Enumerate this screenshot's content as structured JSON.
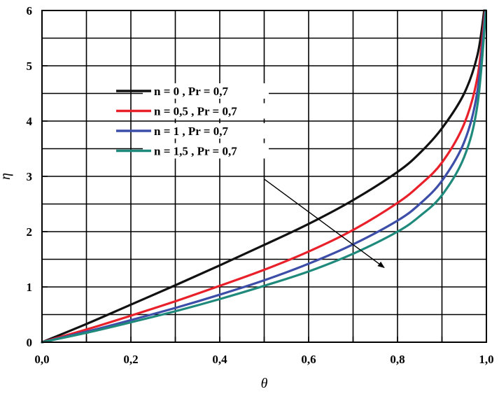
{
  "chart_data": {
    "type": "line",
    "title": "",
    "xlabel": "θ",
    "ylabel": "η",
    "xlim": [
      0,
      1
    ],
    "ylim": [
      0,
      6
    ],
    "grid": true,
    "x_ticks": [
      0,
      0.1,
      0.2,
      0.3,
      0.4,
      0.5,
      0.6,
      0.7,
      0.8,
      0.9,
      1.0
    ],
    "x_tick_labels": [
      "0,0",
      "",
      "0,2",
      "",
      "0,4",
      "",
      "0,6",
      "",
      "0,8",
      "",
      "1,0"
    ],
    "y_ticks": [
      0,
      1,
      2,
      3,
      4,
      5,
      6
    ],
    "y_tick_labels": [
      "0",
      "1",
      "2",
      "3",
      "4",
      "5",
      "6"
    ],
    "legend_position": "upper-left",
    "series": [
      {
        "name": "n = 0 , Pr = 0,7",
        "color": "#111111",
        "points": [
          [
            0,
            0
          ],
          [
            0.1,
            0.33
          ],
          [
            0.2,
            0.68
          ],
          [
            0.3,
            1.03
          ],
          [
            0.4,
            1.39
          ],
          [
            0.5,
            1.76
          ],
          [
            0.6,
            2.14
          ],
          [
            0.7,
            2.57
          ],
          [
            0.8,
            3.08
          ],
          [
            0.85,
            3.42
          ],
          [
            0.9,
            3.87
          ],
          [
            0.95,
            4.5
          ],
          [
            0.98,
            5.2
          ],
          [
            0.995,
            6.0
          ]
        ]
      },
      {
        "name": "n = 0,5 , Pr = 0,7",
        "color": "#e8202a",
        "points": [
          [
            0,
            0
          ],
          [
            0.1,
            0.23
          ],
          [
            0.2,
            0.48
          ],
          [
            0.3,
            0.74
          ],
          [
            0.4,
            1.02
          ],
          [
            0.5,
            1.31
          ],
          [
            0.6,
            1.64
          ],
          [
            0.7,
            2.03
          ],
          [
            0.8,
            2.52
          ],
          [
            0.85,
            2.84
          ],
          [
            0.9,
            3.25
          ],
          [
            0.95,
            3.95
          ],
          [
            0.98,
            4.8
          ],
          [
            0.997,
            6.0
          ]
        ]
      },
      {
        "name": "n = 1 , Pr = 0,7",
        "color": "#3d4ea8",
        "points": [
          [
            0,
            0
          ],
          [
            0.1,
            0.19
          ],
          [
            0.2,
            0.4
          ],
          [
            0.3,
            0.62
          ],
          [
            0.4,
            0.86
          ],
          [
            0.5,
            1.12
          ],
          [
            0.6,
            1.42
          ],
          [
            0.7,
            1.77
          ],
          [
            0.8,
            2.2
          ],
          [
            0.85,
            2.5
          ],
          [
            0.9,
            2.92
          ],
          [
            0.95,
            3.62
          ],
          [
            0.98,
            4.55
          ],
          [
            0.998,
            6.0
          ]
        ]
      },
      {
        "name": "n = 1,5 , Pr = 0,7",
        "color": "#1f8a7c",
        "points": [
          [
            0,
            0
          ],
          [
            0.1,
            0.17
          ],
          [
            0.2,
            0.36
          ],
          [
            0.3,
            0.56
          ],
          [
            0.4,
            0.78
          ],
          [
            0.5,
            1.02
          ],
          [
            0.6,
            1.28
          ],
          [
            0.7,
            1.6
          ],
          [
            0.8,
            2.0
          ],
          [
            0.85,
            2.28
          ],
          [
            0.9,
            2.66
          ],
          [
            0.95,
            3.35
          ],
          [
            0.98,
            4.3
          ],
          [
            0.999,
            6.0
          ]
        ]
      }
    ],
    "annotations": [
      {
        "type": "arrow",
        "from": [
          0.5,
          2.95
        ],
        "to": [
          0.77,
          1.35
        ],
        "color": "#000000"
      }
    ]
  }
}
